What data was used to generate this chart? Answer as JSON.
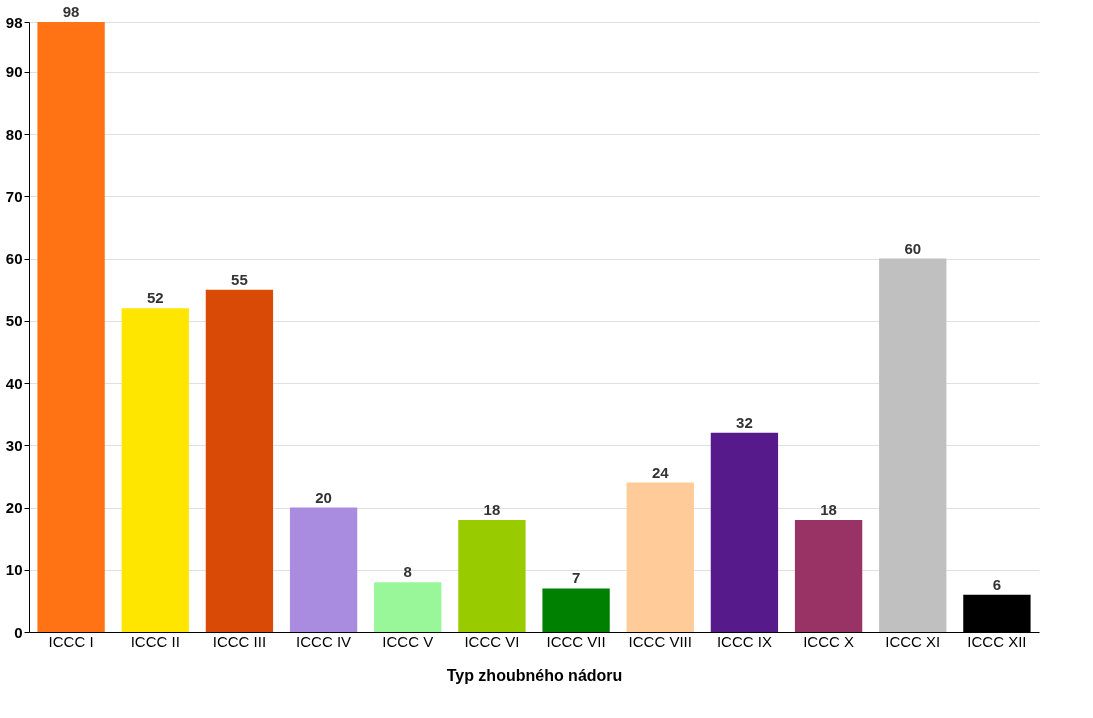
{
  "chart_data": {
    "type": "bar",
    "xlabel": "Typ zhoubného nádoru",
    "categories": [
      "ICCC I",
      "ICCC II",
      "ICCC III",
      "ICCC IV",
      "ICCC V",
      "ICCC VI",
      "ICCC VII",
      "ICCC VIII",
      "ICCC IX",
      "ICCC X",
      "ICCC XI",
      "ICCC XII"
    ],
    "values": [
      98,
      52,
      55,
      20,
      8,
      18,
      7,
      24,
      32,
      18,
      60,
      6
    ],
    "colors": [
      "#ff7315",
      "#ffe600",
      "#d94a06",
      "#a98be0",
      "#99f79a",
      "#99cc00",
      "#008000",
      "#ffcc99",
      "#561a8a",
      "#993366",
      "#c0c0c0",
      "#000000"
    ],
    "ylim": [
      0,
      98
    ],
    "yticks": [
      0,
      10,
      20,
      30,
      40,
      50,
      60,
      70,
      80,
      90,
      98
    ],
    "grid": "y",
    "data_labels": true
  }
}
